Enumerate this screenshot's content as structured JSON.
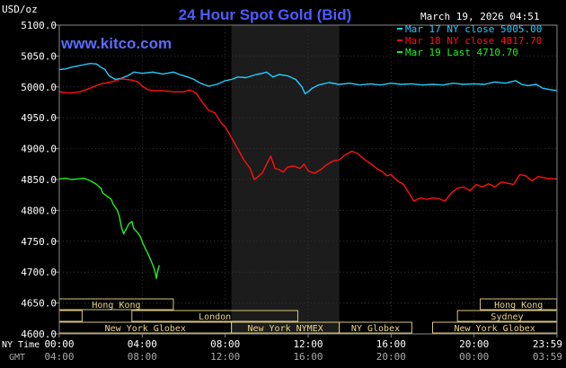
{
  "chart_data": {
    "type": "line",
    "title": "24 Hour Spot Gold (Bid)",
    "ylabel": "USD/oz",
    "watermark": "www.kitco.com",
    "timestamp": "March 19, 2026 04:51",
    "ylim": [
      4600,
      5100
    ],
    "yticks": [
      "5100.0",
      "5050.0",
      "5000.0",
      "4950.0",
      "4900.0",
      "4850.0",
      "4800.0",
      "4750.0",
      "4700.0",
      "4650.0",
      "4600.0"
    ],
    "xlim": [
      0,
      24
    ],
    "x_unit": "hours (NY time)",
    "ny_time_label": "NY Time",
    "gmt_label": "GMT",
    "ny_ticks": [
      "00:00",
      "04:00",
      "08:00",
      "12:00",
      "16:00",
      "20:00",
      "23:59"
    ],
    "gmt_ticks": [
      "04:00",
      "08:00",
      "12:00",
      "16:00",
      "20:00",
      "00:00",
      "03:59"
    ],
    "shaded_region": [
      8.3,
      13.5
    ],
    "legend_position": "top-right",
    "series": [
      {
        "name": "Mar 17 NY close 5005.00",
        "color": "#22ccff",
        "points": [
          [
            0,
            5028
          ],
          [
            0.3,
            5029
          ],
          [
            0.6,
            5032
          ],
          [
            0.9,
            5034
          ],
          [
            1.2,
            5036
          ],
          [
            1.5,
            5038
          ],
          [
            1.8,
            5037
          ],
          [
            2.0,
            5032
          ],
          [
            2.2,
            5028
          ],
          [
            2.4,
            5018
          ],
          [
            2.7,
            5012
          ],
          [
            3.0,
            5014
          ],
          [
            3.3,
            5018
          ],
          [
            3.6,
            5024
          ],
          [
            4.0,
            5022
          ],
          [
            4.5,
            5024
          ],
          [
            5.0,
            5021
          ],
          [
            5.5,
            5024
          ],
          [
            5.8,
            5020
          ],
          [
            6.0,
            5018
          ],
          [
            6.2,
            5016
          ],
          [
            6.5,
            5012
          ],
          [
            6.8,
            5006
          ],
          [
            7.2,
            5001
          ],
          [
            7.6,
            5004
          ],
          [
            8.0,
            5010
          ],
          [
            8.3,
            5012
          ],
          [
            8.6,
            5016
          ],
          [
            9.0,
            5015
          ],
          [
            9.5,
            5020
          ],
          [
            9.8,
            5022
          ],
          [
            10.0,
            5024
          ],
          [
            10.3,
            5016
          ],
          [
            10.6,
            5020
          ],
          [
            11.0,
            5018
          ],
          [
            11.4,
            5012
          ],
          [
            11.7,
            5000
          ],
          [
            11.85,
            4989
          ],
          [
            12.0,
            4992
          ],
          [
            12.2,
            4998
          ],
          [
            12.5,
            5003
          ],
          [
            13.0,
            5007
          ],
          [
            13.5,
            5004
          ],
          [
            14.0,
            5006
          ],
          [
            14.5,
            5003
          ],
          [
            15.0,
            5005
          ],
          [
            15.5,
            5003
          ],
          [
            16.0,
            5006
          ],
          [
            16.5,
            5004
          ],
          [
            17.0,
            5005
          ],
          [
            17.5,
            5003
          ],
          [
            18.0,
            5004
          ],
          [
            18.5,
            5003
          ],
          [
            19.0,
            5006
          ],
          [
            19.5,
            5004
          ],
          [
            20.0,
            5005
          ],
          [
            20.5,
            5004
          ],
          [
            21.0,
            5008
          ],
          [
            21.5,
            5006
          ],
          [
            22.0,
            5010
          ],
          [
            22.3,
            5004
          ],
          [
            22.6,
            5002
          ],
          [
            23.0,
            5004
          ],
          [
            23.3,
            4998
          ],
          [
            23.6,
            4996
          ],
          [
            23.99,
            4994
          ]
        ]
      },
      {
        "name": "Mar 18 NY close 4817.70",
        "color": "#ff1111",
        "points": [
          [
            0,
            4992
          ],
          [
            0.5,
            4990
          ],
          [
            1.0,
            4992
          ],
          [
            1.5,
            4998
          ],
          [
            2.0,
            5005
          ],
          [
            2.5,
            5008
          ],
          [
            3.0,
            5013
          ],
          [
            3.5,
            5011
          ],
          [
            3.8,
            5008
          ],
          [
            4.0,
            5001
          ],
          [
            4.3,
            4995
          ],
          [
            4.6,
            4994
          ],
          [
            5.0,
            4994
          ],
          [
            5.5,
            4992
          ],
          [
            6.0,
            4992
          ],
          [
            6.3,
            4995
          ],
          [
            6.6,
            4990
          ],
          [
            6.9,
            4975
          ],
          [
            7.2,
            4962
          ],
          [
            7.5,
            4958
          ],
          [
            7.8,
            4942
          ],
          [
            8.0,
            4935
          ],
          [
            8.3,
            4918
          ],
          [
            8.6,
            4900
          ],
          [
            8.9,
            4882
          ],
          [
            9.2,
            4868
          ],
          [
            9.4,
            4850
          ],
          [
            9.6,
            4855
          ],
          [
            9.8,
            4861
          ],
          [
            10.0,
            4875
          ],
          [
            10.2,
            4888
          ],
          [
            10.4,
            4868
          ],
          [
            10.6,
            4866
          ],
          [
            10.8,
            4862
          ],
          [
            11.0,
            4870
          ],
          [
            11.3,
            4872
          ],
          [
            11.6,
            4868
          ],
          [
            11.8,
            4875
          ],
          [
            12.0,
            4864
          ],
          [
            12.3,
            4860
          ],
          [
            12.6,
            4866
          ],
          [
            12.9,
            4874
          ],
          [
            13.2,
            4880
          ],
          [
            13.5,
            4882
          ],
          [
            13.8,
            4890
          ],
          [
            14.1,
            4896
          ],
          [
            14.4,
            4892
          ],
          [
            14.7,
            4883
          ],
          [
            15.0,
            4876
          ],
          [
            15.3,
            4868
          ],
          [
            15.6,
            4862
          ],
          [
            15.8,
            4856
          ],
          [
            16.0,
            4858
          ],
          [
            16.3,
            4848
          ],
          [
            16.6,
            4842
          ],
          [
            16.9,
            4826
          ],
          [
            17.1,
            4815
          ],
          [
            17.4,
            4820
          ],
          [
            17.7,
            4818
          ],
          [
            18.0,
            4820
          ],
          [
            18.3,
            4819
          ],
          [
            18.6,
            4815
          ],
          [
            18.9,
            4828
          ],
          [
            19.2,
            4836
          ],
          [
            19.5,
            4838
          ],
          [
            19.8,
            4832
          ],
          [
            20.1,
            4842
          ],
          [
            20.4,
            4838
          ],
          [
            20.7,
            4843
          ],
          [
            21.0,
            4838
          ],
          [
            21.3,
            4846
          ],
          [
            21.6,
            4844
          ],
          [
            21.9,
            4842
          ],
          [
            22.2,
            4858
          ],
          [
            22.5,
            4856
          ],
          [
            22.8,
            4848
          ],
          [
            23.1,
            4855
          ],
          [
            23.5,
            4852
          ],
          [
            23.99,
            4851
          ]
        ]
      },
      {
        "name": "Mar 19 Last 4710.70",
        "color": "#22ee22",
        "points": [
          [
            0,
            4851
          ],
          [
            0.3,
            4852
          ],
          [
            0.6,
            4850
          ],
          [
            0.9,
            4851
          ],
          [
            1.2,
            4852
          ],
          [
            1.5,
            4848
          ],
          [
            1.8,
            4842
          ],
          [
            2.0,
            4836
          ],
          [
            2.1,
            4828
          ],
          [
            2.3,
            4823
          ],
          [
            2.5,
            4818
          ],
          [
            2.6,
            4810
          ],
          [
            2.8,
            4800
          ],
          [
            2.9,
            4790
          ],
          [
            3.0,
            4772
          ],
          [
            3.1,
            4762
          ],
          [
            3.2,
            4768
          ],
          [
            3.35,
            4778
          ],
          [
            3.5,
            4782
          ],
          [
            3.6,
            4770
          ],
          [
            3.75,
            4765
          ],
          [
            3.9,
            4758
          ],
          [
            4.05,
            4745
          ],
          [
            4.2,
            4735
          ],
          [
            4.3,
            4728
          ],
          [
            4.4,
            4720
          ],
          [
            4.5,
            4712
          ],
          [
            4.55,
            4708
          ],
          [
            4.62,
            4700
          ],
          [
            4.68,
            4690
          ],
          [
            4.75,
            4702
          ],
          [
            4.82,
            4711
          ]
        ]
      }
    ],
    "sessions": [
      {
        "label": "Hong Kong",
        "start": 0,
        "end": 5.5,
        "row": 1
      },
      {
        "label": "Hong Kong",
        "start": 20.3,
        "end": 23.99,
        "row": 1
      },
      {
        "label": "",
        "start": 0,
        "end": 1.1,
        "row": 2
      },
      {
        "label": "London",
        "start": 3.5,
        "end": 11.5,
        "row": 2
      },
      {
        "label": "Sydney",
        "start": 19.2,
        "end": 23.99,
        "row": 2
      },
      {
        "label": "New York Globex",
        "start": 0,
        "end": 8.3,
        "row": 3
      },
      {
        "label": "New York NYMEX",
        "start": 8.3,
        "end": 13.5,
        "row": 3
      },
      {
        "label": "NY Globex",
        "start": 13.5,
        "end": 17.0,
        "row": 3
      },
      {
        "label": "New York Globex",
        "start": 18.0,
        "end": 23.99,
        "row": 3
      }
    ]
  }
}
